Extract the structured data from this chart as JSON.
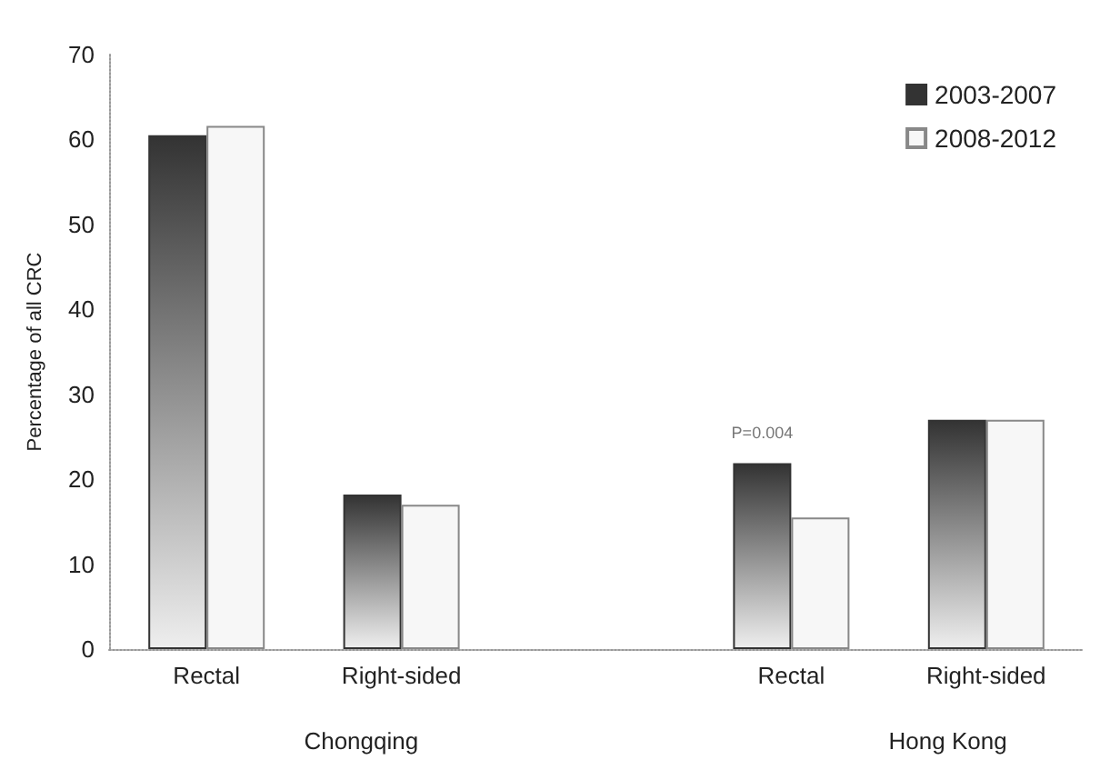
{
  "chart_data": {
    "type": "bar",
    "ylabel": "Percentage of all CRC",
    "categories": [
      "Rectal",
      "Right-sided",
      null,
      "Rectal",
      "Right-sided"
    ],
    "series": [
      {
        "name": "2003-2007",
        "color": "#333333",
        "values": [
          60.5,
          18.2,
          null,
          21.9,
          27
        ]
      },
      {
        "name": "2008-2012",
        "color": "#f7f7f7",
        "values": [
          61.6,
          17,
          null,
          15.5,
          27
        ]
      }
    ],
    "ylim": [
      0,
      70
    ],
    "yticks": [
      0,
      10,
      20,
      30,
      40,
      50,
      60,
      70
    ],
    "grid": false,
    "legend": "top right",
    "annotations": [
      "Chongqing",
      "Hong Kong",
      "P=0.004"
    ]
  }
}
